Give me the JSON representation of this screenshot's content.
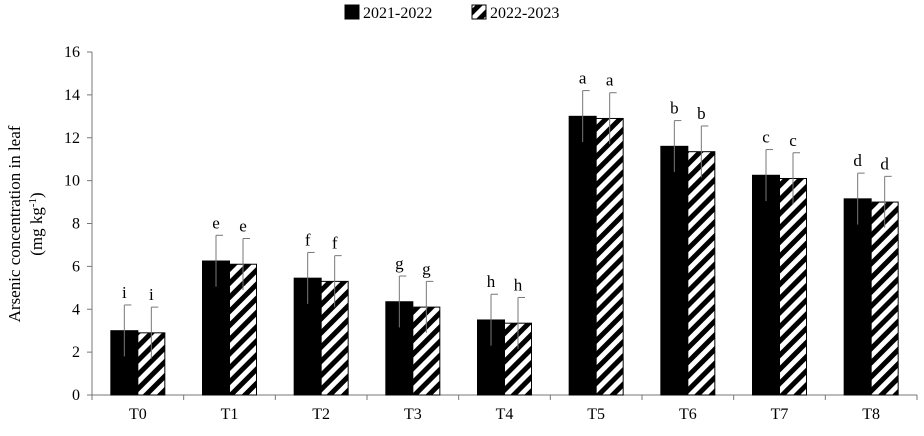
{
  "chart_data": {
    "type": "bar",
    "title": "",
    "xlabel": "",
    "ylabel_line1": "Arsenic concentration in leaf",
    "ylabel_line2_prefix": "(mg kg",
    "ylabel_line2_sup": "-1",
    "ylabel_line2_suffix": ")",
    "ylim": [
      0,
      16
    ],
    "yticks": [
      0,
      2,
      4,
      6,
      8,
      10,
      12,
      14,
      16
    ],
    "categories": [
      "T0",
      "T1",
      "T2",
      "T3",
      "T4",
      "T5",
      "T6",
      "T7",
      "T8"
    ],
    "series": [
      {
        "name": "2021-2022",
        "fill": "solid-black",
        "values": [
          3.0,
          6.25,
          5.45,
          4.35,
          3.5,
          13.0,
          11.6,
          10.25,
          9.15
        ],
        "errors": [
          1.2,
          1.2,
          1.2,
          1.2,
          1.2,
          1.2,
          1.2,
          1.2,
          1.2
        ],
        "letters": [
          "i",
          "e",
          "f",
          "g",
          "h",
          "a",
          "b",
          "c",
          "d"
        ]
      },
      {
        "name": "2022-2023",
        "fill": "diagonal-stripes",
        "values": [
          2.9,
          6.1,
          5.3,
          4.1,
          3.35,
          12.9,
          11.35,
          10.1,
          9.0
        ],
        "errors": [
          1.2,
          1.2,
          1.2,
          1.2,
          1.2,
          1.2,
          1.2,
          1.2,
          1.2
        ],
        "letters": [
          "i",
          "e",
          "f",
          "g",
          "h",
          "a",
          "b",
          "c",
          "d"
        ]
      }
    ],
    "grid": false,
    "legend_position": "top-center",
    "colors": {
      "bar": "#000000",
      "axis": "#777777",
      "background": "#ffffff"
    }
  }
}
